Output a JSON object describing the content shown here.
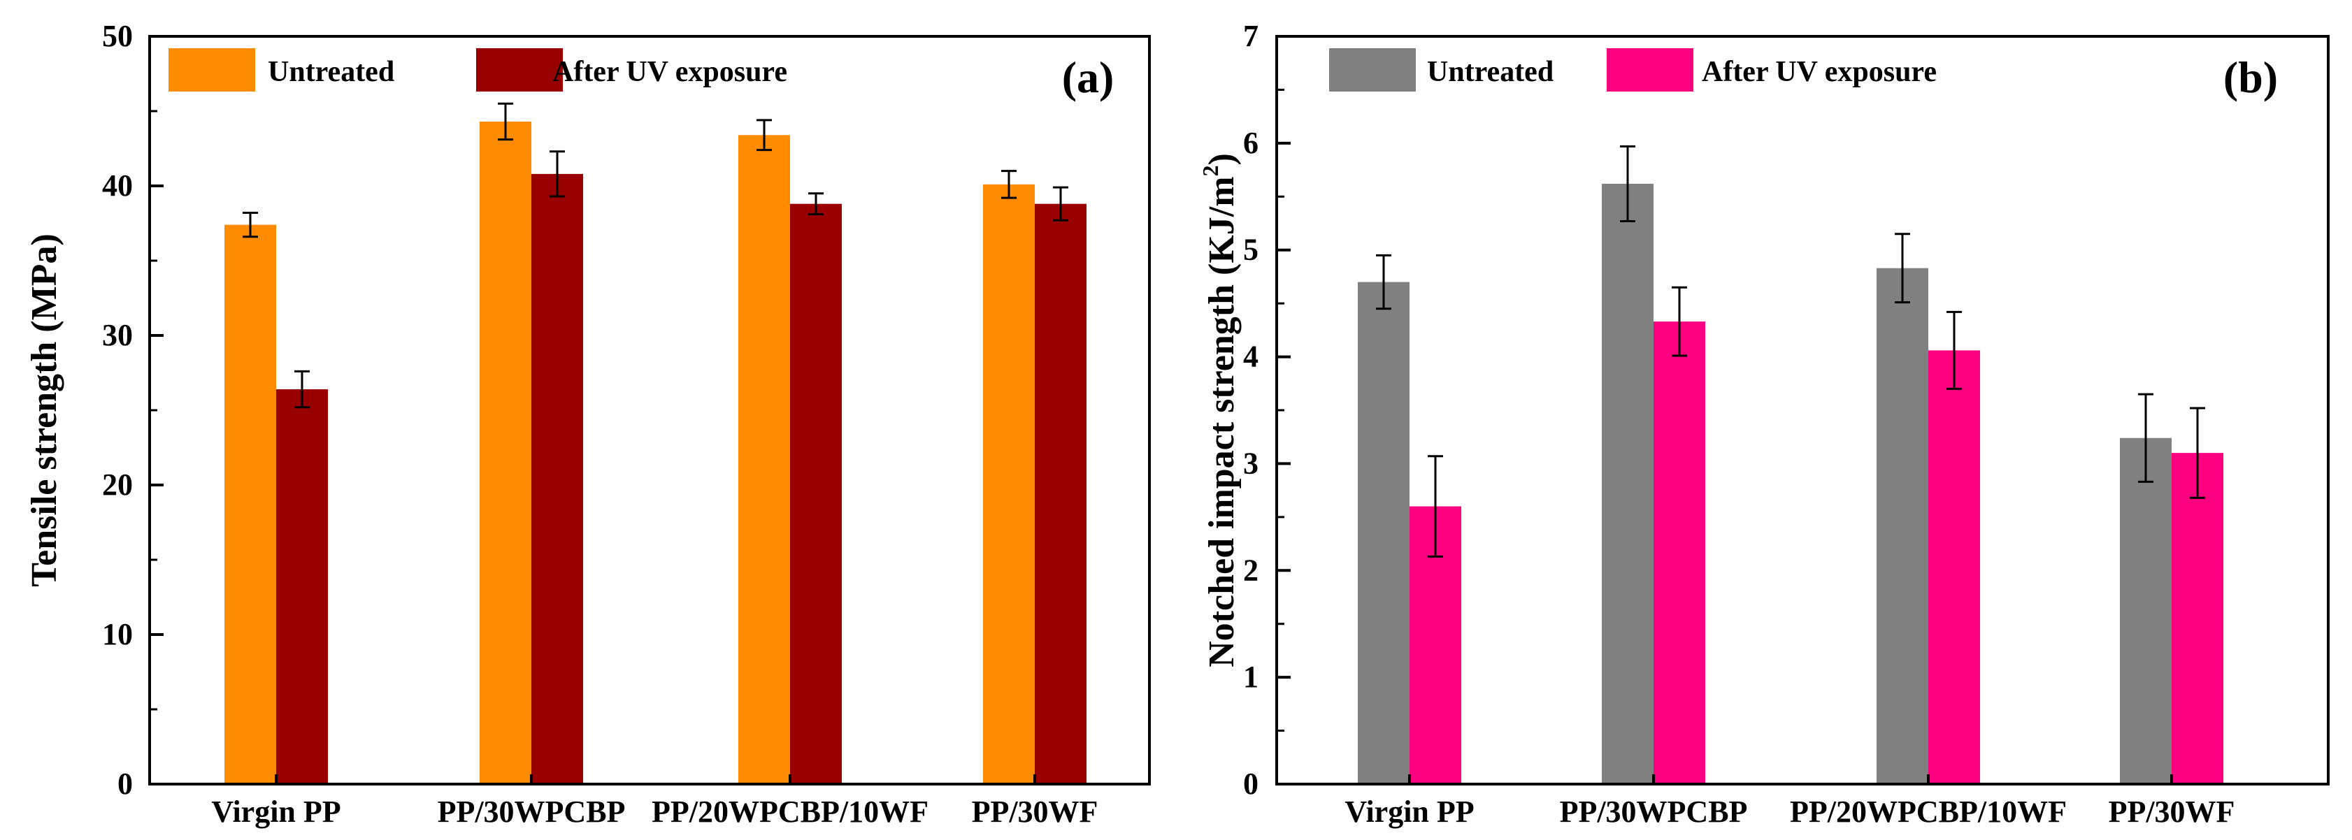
{
  "chart_data": [
    {
      "type": "bar",
      "panel_label": "(a)",
      "title": "",
      "xlabel": "",
      "ylabel": "Tensile strength (MPa)",
      "ylim": [
        0,
        50
      ],
      "yticks": [
        0,
        10,
        20,
        30,
        40,
        50
      ],
      "grid": false,
      "legend_position": "top-left",
      "categories": [
        "Virgin PP",
        "PP/30WPCBP",
        "PP/20WPCBP/10WF",
        "PP/30WF"
      ],
      "series": [
        {
          "name": "Untreated",
          "color": "#ff8c00",
          "values": [
            37.4,
            44.3,
            43.4,
            40.1
          ],
          "errors": [
            0.8,
            1.2,
            1.0,
            0.9
          ]
        },
        {
          "name": "After UV exposure",
          "color": "#990000",
          "values": [
            26.4,
            40.8,
            38.8,
            38.8
          ],
          "errors": [
            1.2,
            1.5,
            0.7,
            1.1
          ]
        }
      ]
    },
    {
      "type": "bar",
      "panel_label": "(b)",
      "title": "",
      "xlabel": "",
      "ylabel": "Notched impact strength (KJ/m²)",
      "ylabel_main": "Notched impact strength (KJ/m",
      "ylabel_sup": "2",
      "ylabel_close": ")",
      "ylim": [
        0,
        7
      ],
      "yticks": [
        0,
        1,
        2,
        3,
        4,
        5,
        6,
        7
      ],
      "grid": false,
      "legend_position": "top-left",
      "categories": [
        "Virgin PP",
        "PP/30WPCBP",
        "PP/20WPCBP/10WF",
        "PP/30WF"
      ],
      "series": [
        {
          "name": "Untreated",
          "color": "#808080",
          "values": [
            4.7,
            5.62,
            4.83,
            3.24
          ],
          "errors": [
            0.25,
            0.35,
            0.32,
            0.41
          ]
        },
        {
          "name": "After UV exposure",
          "color": "#ff0080",
          "values": [
            2.6,
            4.33,
            4.06,
            3.1
          ],
          "errors": [
            0.47,
            0.32,
            0.36,
            0.42
          ]
        }
      ]
    }
  ]
}
